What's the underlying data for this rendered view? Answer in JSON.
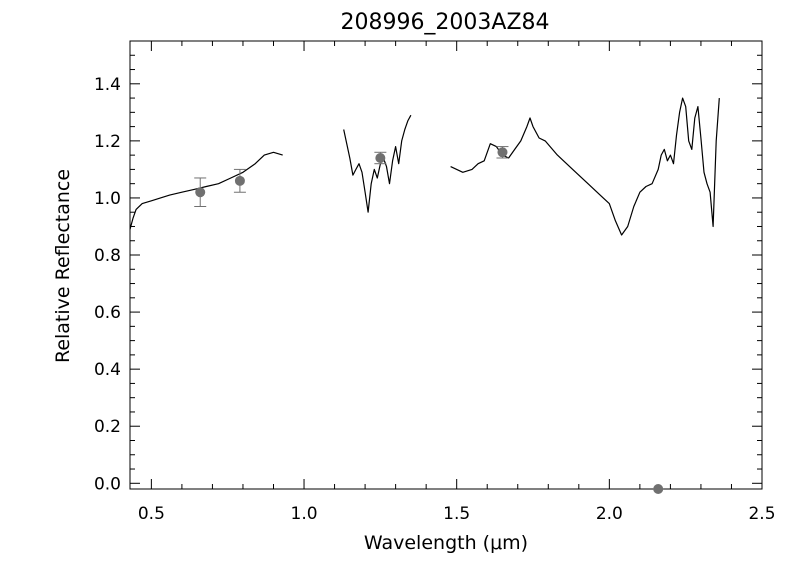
{
  "chart_data": {
    "type": "line",
    "title": "208996_2003AZ84",
    "xlabel": "Wavelength (μm)",
    "ylabel": "Relative Reflectance",
    "xlim": [
      0.43,
      2.5
    ],
    "ylim": [
      -0.02,
      1.55
    ],
    "x_ticks": [
      0.5,
      1.0,
      1.5,
      2.0,
      2.5
    ],
    "x_tick_labels": [
      "0.5",
      "1.0",
      "1.5",
      "2.0",
      "2.5"
    ],
    "y_ticks": [
      0.0,
      0.2,
      0.4,
      0.6,
      0.8,
      1.0,
      1.2,
      1.4
    ],
    "y_tick_labels": [
      "0.0",
      "0.2",
      "0.4",
      "0.6",
      "0.8",
      "1.0",
      "1.2",
      "1.4"
    ],
    "grid": false,
    "line_color": "#000000",
    "point_color": "#707070",
    "series": [
      {
        "kind": "spectrum",
        "segments": [
          [
            [
              0.43,
              0.89
            ],
            [
              0.44,
              0.93
            ],
            [
              0.45,
              0.96
            ],
            [
              0.47,
              0.98
            ],
            [
              0.5,
              0.99
            ],
            [
              0.53,
              1.0
            ],
            [
              0.56,
              1.01
            ],
            [
              0.6,
              1.02
            ],
            [
              0.64,
              1.03
            ],
            [
              0.68,
              1.04
            ],
            [
              0.72,
              1.05
            ],
            [
              0.76,
              1.07
            ],
            [
              0.8,
              1.09
            ],
            [
              0.84,
              1.12
            ],
            [
              0.87,
              1.15
            ],
            [
              0.9,
              1.16
            ],
            [
              0.93,
              1.15
            ]
          ],
          [
            [
              1.13,
              1.24
            ],
            [
              1.15,
              1.14
            ],
            [
              1.16,
              1.08
            ],
            [
              1.17,
              1.1
            ],
            [
              1.18,
              1.12
            ],
            [
              1.19,
              1.09
            ],
            [
              1.2,
              1.02
            ],
            [
              1.21,
              0.95
            ],
            [
              1.22,
              1.05
            ],
            [
              1.23,
              1.1
            ],
            [
              1.24,
              1.07
            ],
            [
              1.25,
              1.12
            ],
            [
              1.26,
              1.14
            ],
            [
              1.27,
              1.11
            ],
            [
              1.28,
              1.05
            ],
            [
              1.29,
              1.13
            ],
            [
              1.3,
              1.18
            ],
            [
              1.31,
              1.12
            ],
            [
              1.32,
              1.2
            ],
            [
              1.33,
              1.24
            ],
            [
              1.34,
              1.27
            ],
            [
              1.35,
              1.29
            ]
          ],
          [
            [
              1.48,
              1.11
            ],
            [
              1.5,
              1.1
            ],
            [
              1.52,
              1.09
            ],
            [
              1.55,
              1.1
            ],
            [
              1.57,
              1.12
            ],
            [
              1.59,
              1.13
            ],
            [
              1.61,
              1.19
            ],
            [
              1.63,
              1.18
            ],
            [
              1.65,
              1.15
            ],
            [
              1.67,
              1.14
            ],
            [
              1.69,
              1.17
            ],
            [
              1.71,
              1.2
            ],
            [
              1.73,
              1.25
            ],
            [
              1.74,
              1.28
            ],
            [
              1.75,
              1.25
            ],
            [
              1.77,
              1.21
            ],
            [
              1.79,
              1.2
            ],
            [
              1.83,
              1.15
            ],
            [
              1.88,
              1.1
            ],
            [
              1.93,
              1.05
            ],
            [
              1.98,
              1.0
            ],
            [
              2.0,
              0.98
            ],
            [
              2.02,
              0.92
            ],
            [
              2.04,
              0.87
            ],
            [
              2.06,
              0.9
            ],
            [
              2.08,
              0.97
            ],
            [
              2.1,
              1.02
            ],
            [
              2.12,
              1.04
            ],
            [
              2.14,
              1.05
            ],
            [
              2.16,
              1.1
            ],
            [
              2.17,
              1.15
            ],
            [
              2.18,
              1.17
            ],
            [
              2.19,
              1.13
            ],
            [
              2.2,
              1.15
            ],
            [
              2.21,
              1.12
            ],
            [
              2.22,
              1.22
            ],
            [
              2.23,
              1.3
            ],
            [
              2.24,
              1.35
            ],
            [
              2.25,
              1.32
            ],
            [
              2.26,
              1.2
            ],
            [
              2.27,
              1.17
            ],
            [
              2.28,
              1.28
            ],
            [
              2.29,
              1.32
            ],
            [
              2.3,
              1.21
            ],
            [
              2.31,
              1.09
            ],
            [
              2.32,
              1.05
            ],
            [
              2.33,
              1.02
            ],
            [
              2.34,
              0.9
            ],
            [
              2.35,
              1.2
            ],
            [
              2.36,
              1.35
            ]
          ]
        ]
      },
      {
        "kind": "photometry",
        "points": [
          {
            "x": 0.66,
            "y": 1.02,
            "err": 0.05
          },
          {
            "x": 0.79,
            "y": 1.06,
            "err": 0.04
          },
          {
            "x": 1.25,
            "y": 1.14,
            "err": 0.02
          },
          {
            "x": 1.65,
            "y": 1.16,
            "err": 0.02
          },
          {
            "x": 2.16,
            "y": -0.02,
            "err": 0.0
          }
        ]
      }
    ]
  }
}
